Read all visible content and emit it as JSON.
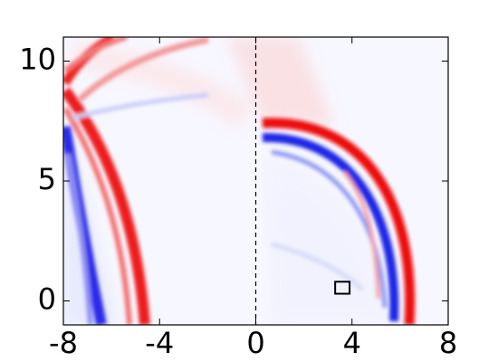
{
  "chart_data": {
    "type": "field",
    "xlim": [
      -8,
      8
    ],
    "ylim": [
      -1,
      11
    ],
    "xticks": [
      -8,
      -4,
      0,
      4,
      8
    ],
    "yticks": [
      0,
      5,
      10
    ],
    "vline": 0,
    "box": {
      "x": [
        3.3,
        3.9
      ],
      "y": [
        0.3,
        0.8
      ]
    }
  }
}
